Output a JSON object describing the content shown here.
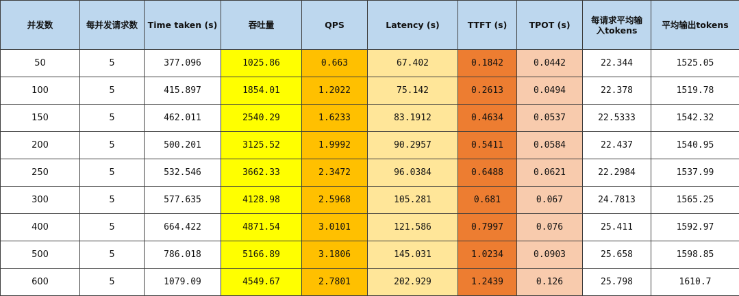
{
  "chart_data": {
    "type": "table",
    "columns": [
      "并发数",
      "每并发请求数",
      "Time taken (s)",
      "吞吐量",
      "QPS",
      "Latency (s)",
      "TTFT (s)",
      "TPOT (s)",
      "每请求平均输入tokens",
      "平均输出tokens"
    ],
    "rows": [
      [
        "50",
        "5",
        "377.096",
        "1025.86",
        "0.663",
        "67.402",
        "0.1842",
        "0.0442",
        "22.344",
        "1525.05"
      ],
      [
        "100",
        "5",
        "415.897",
        "1854.01",
        "1.2022",
        "75.142",
        "0.2613",
        "0.0494",
        "22.378",
        "1519.78"
      ],
      [
        "150",
        "5",
        "462.011",
        "2540.29",
        "1.6233",
        "83.1912",
        "0.4634",
        "0.0537",
        "22.5333",
        "1542.32"
      ],
      [
        "200",
        "5",
        "500.201",
        "3125.52",
        "1.9992",
        "90.2957",
        "0.5411",
        "0.0584",
        "22.437",
        "1540.95"
      ],
      [
        "250",
        "5",
        "532.546",
        "3662.33",
        "2.3472",
        "96.0384",
        "0.6488",
        "0.0621",
        "22.2984",
        "1537.99"
      ],
      [
        "300",
        "5",
        "577.635",
        "4128.98",
        "2.5968",
        "105.281",
        "0.681",
        "0.067",
        "24.7813",
        "1565.25"
      ],
      [
        "400",
        "5",
        "664.422",
        "4871.54",
        "3.0101",
        "121.586",
        "0.7997",
        "0.076",
        "25.411",
        "1592.97"
      ],
      [
        "500",
        "5",
        "786.018",
        "5166.89",
        "3.1806",
        "145.031",
        "1.0234",
        "0.0903",
        "25.658",
        "1598.85"
      ],
      [
        "600",
        "5",
        "1079.09",
        "4549.67",
        "2.7801",
        "202.929",
        "1.2439",
        "0.126",
        "25.798",
        "1610.7"
      ]
    ],
    "colors": {
      "header": "#bdd7ee",
      "吞吐量": "#ffff00",
      "QPS": "#ffc000",
      "Latency (s)": "#ffe699",
      "TTFT (s)": "#ed7d31",
      "TPOT (s)": "#f8cbad"
    }
  }
}
